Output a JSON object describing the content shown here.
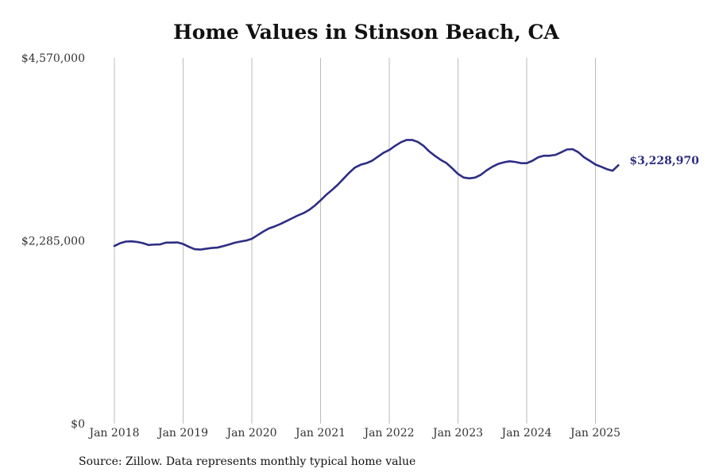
{
  "chart_data": {
    "type": "line",
    "title": "Home Values in Stinson Beach, CA",
    "xlabel": "",
    "ylabel": "",
    "ylim": [
      0,
      4570000
    ],
    "y_ticks": [
      {
        "value": 0,
        "label": "$0"
      },
      {
        "value": 2285000,
        "label": "$2,285,000"
      },
      {
        "value": 4570000,
        "label": "$4,570,000"
      }
    ],
    "x_ticks": [
      {
        "value": "2018-01",
        "label": "Jan 2018"
      },
      {
        "value": "2019-01",
        "label": "Jan 2019"
      },
      {
        "value": "2020-01",
        "label": "Jan 2020"
      },
      {
        "value": "2021-01",
        "label": "Jan 2021"
      },
      {
        "value": "2022-01",
        "label": "Jan 2022"
      },
      {
        "value": "2023-01",
        "label": "Jan 2023"
      },
      {
        "value": "2024-01",
        "label": "Jan 2024"
      },
      {
        "value": "2025-01",
        "label": "Jan 2025"
      }
    ],
    "grid": {
      "vertical": true,
      "horizontal": false
    },
    "line_color": "#2e2d84",
    "grid_color": "#bbbbbb",
    "end_label": "$3,228,970",
    "series": [
      {
        "x": [
          "2018-01",
          "2018-02",
          "2018-03",
          "2018-04",
          "2018-05",
          "2018-06",
          "2018-07",
          "2018-08",
          "2018-09",
          "2018-10",
          "2018-11",
          "2018-12",
          "2019-01",
          "2019-02",
          "2019-03",
          "2019-04",
          "2019-05",
          "2019-06",
          "2019-07",
          "2019-08",
          "2019-09",
          "2019-10",
          "2019-11",
          "2019-12",
          "2020-01",
          "2020-02",
          "2020-03",
          "2020-04",
          "2020-05",
          "2020-06",
          "2020-07",
          "2020-08",
          "2020-09",
          "2020-10",
          "2020-11",
          "2020-12",
          "2021-01",
          "2021-02",
          "2021-03",
          "2021-04",
          "2021-05",
          "2021-06",
          "2021-07",
          "2021-08",
          "2021-09",
          "2021-10",
          "2021-11",
          "2021-12",
          "2022-01",
          "2022-02",
          "2022-03",
          "2022-04",
          "2022-05",
          "2022-06",
          "2022-07",
          "2022-08",
          "2022-09",
          "2022-10",
          "2022-11",
          "2022-12",
          "2023-01",
          "2023-02",
          "2023-03",
          "2023-04",
          "2023-05",
          "2023-06",
          "2023-07",
          "2023-08",
          "2023-09",
          "2023-10",
          "2023-11",
          "2023-12",
          "2024-01",
          "2024-02",
          "2024-03",
          "2024-04",
          "2024-05",
          "2024-06",
          "2024-07",
          "2024-08",
          "2024-09",
          "2024-10",
          "2024-11",
          "2024-12",
          "2025-01",
          "2025-02",
          "2025-03",
          "2025-04",
          "2025-05"
        ],
        "values": [
          2220000,
          2255000,
          2275000,
          2278000,
          2270000,
          2255000,
          2232000,
          2238000,
          2240000,
          2262000,
          2262000,
          2265000,
          2245000,
          2210000,
          2180000,
          2175000,
          2185000,
          2195000,
          2200000,
          2218000,
          2238000,
          2260000,
          2275000,
          2288000,
          2310000,
          2355000,
          2400000,
          2440000,
          2465000,
          2495000,
          2530000,
          2565000,
          2600000,
          2630000,
          2670000,
          2725000,
          2790000,
          2860000,
          2920000,
          2985000,
          3060000,
          3135000,
          3200000,
          3235000,
          3255000,
          3285000,
          3335000,
          3385000,
          3420000,
          3470000,
          3515000,
          3545000,
          3545000,
          3520000,
          3470000,
          3400000,
          3345000,
          3295000,
          3255000,
          3190000,
          3120000,
          3075000,
          3065000,
          3075000,
          3110000,
          3165000,
          3210000,
          3245000,
          3265000,
          3278000,
          3270000,
          3255000,
          3255000,
          3285000,
          3328000,
          3348000,
          3348000,
          3358000,
          3390000,
          3425000,
          3430000,
          3392000,
          3330000,
          3285000,
          3238000,
          3210000,
          3180000,
          3160000,
          3228970
        ]
      }
    ]
  },
  "source": "Source: Zillow. Data represents monthly typical home value"
}
